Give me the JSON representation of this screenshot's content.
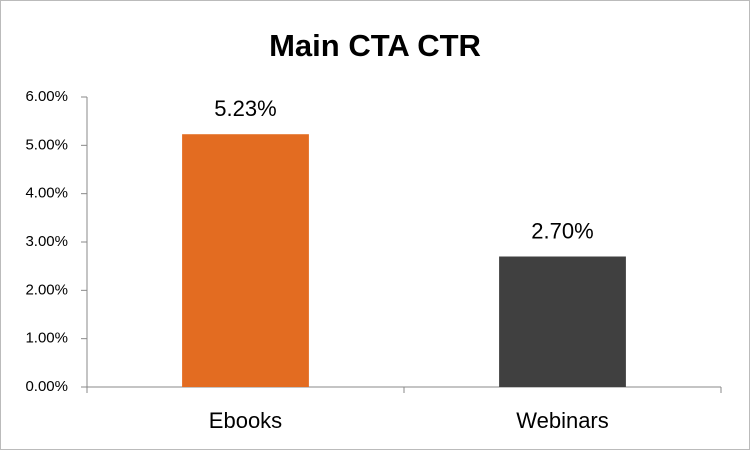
{
  "chart_data": {
    "type": "bar",
    "title": "Main CTA CTR",
    "categories": [
      "Ebooks",
      "Webinars"
    ],
    "values": [
      5.23,
      2.7
    ],
    "value_labels": [
      "5.23%",
      "2.70%"
    ],
    "colors": [
      "#e36c21",
      "#404040"
    ],
    "ylim": [
      0,
      6
    ],
    "yticks": [
      {
        "value": 0,
        "label": "0.00%"
      },
      {
        "value": 1,
        "label": "1.00%"
      },
      {
        "value": 2,
        "label": "2.00%"
      },
      {
        "value": 3,
        "label": "3.00%"
      },
      {
        "value": 4,
        "label": "4.00%"
      },
      {
        "value": 5,
        "label": "5.00%"
      },
      {
        "value": 6,
        "label": "6.00%"
      }
    ],
    "grid": false
  }
}
